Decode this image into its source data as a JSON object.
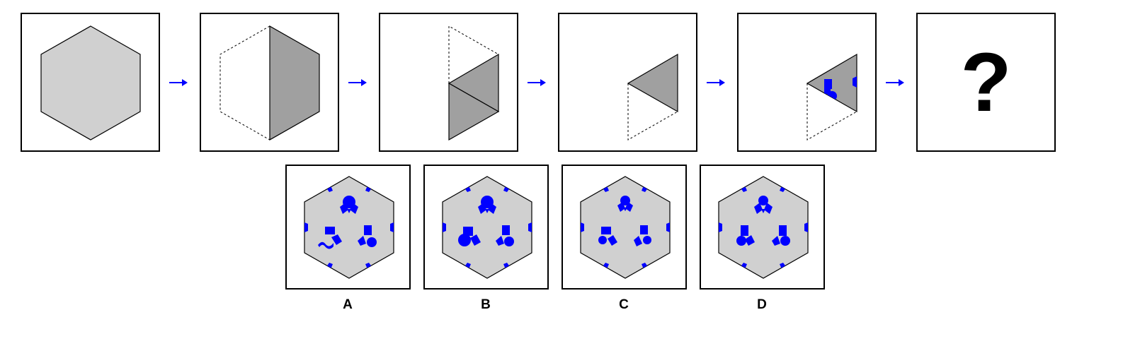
{
  "colors": {
    "light_gray": "#d0d0d0",
    "dark_gray": "#a0a0a0",
    "blue": "#0000ff",
    "stroke": "#000000"
  },
  "sequence": {
    "panels": [
      {
        "content": "full-hexagon"
      },
      {
        "content": "half-folded-left"
      },
      {
        "content": "folded-to-two-triangles"
      },
      {
        "content": "folded-to-one-triangle"
      },
      {
        "content": "triangle-with-cutouts"
      },
      {
        "content": "question",
        "label": "?"
      }
    ],
    "arrow_icon": "right-arrow-icon"
  },
  "options": [
    {
      "label": "A"
    },
    {
      "label": "B"
    },
    {
      "label": "C"
    },
    {
      "label": "D"
    }
  ]
}
